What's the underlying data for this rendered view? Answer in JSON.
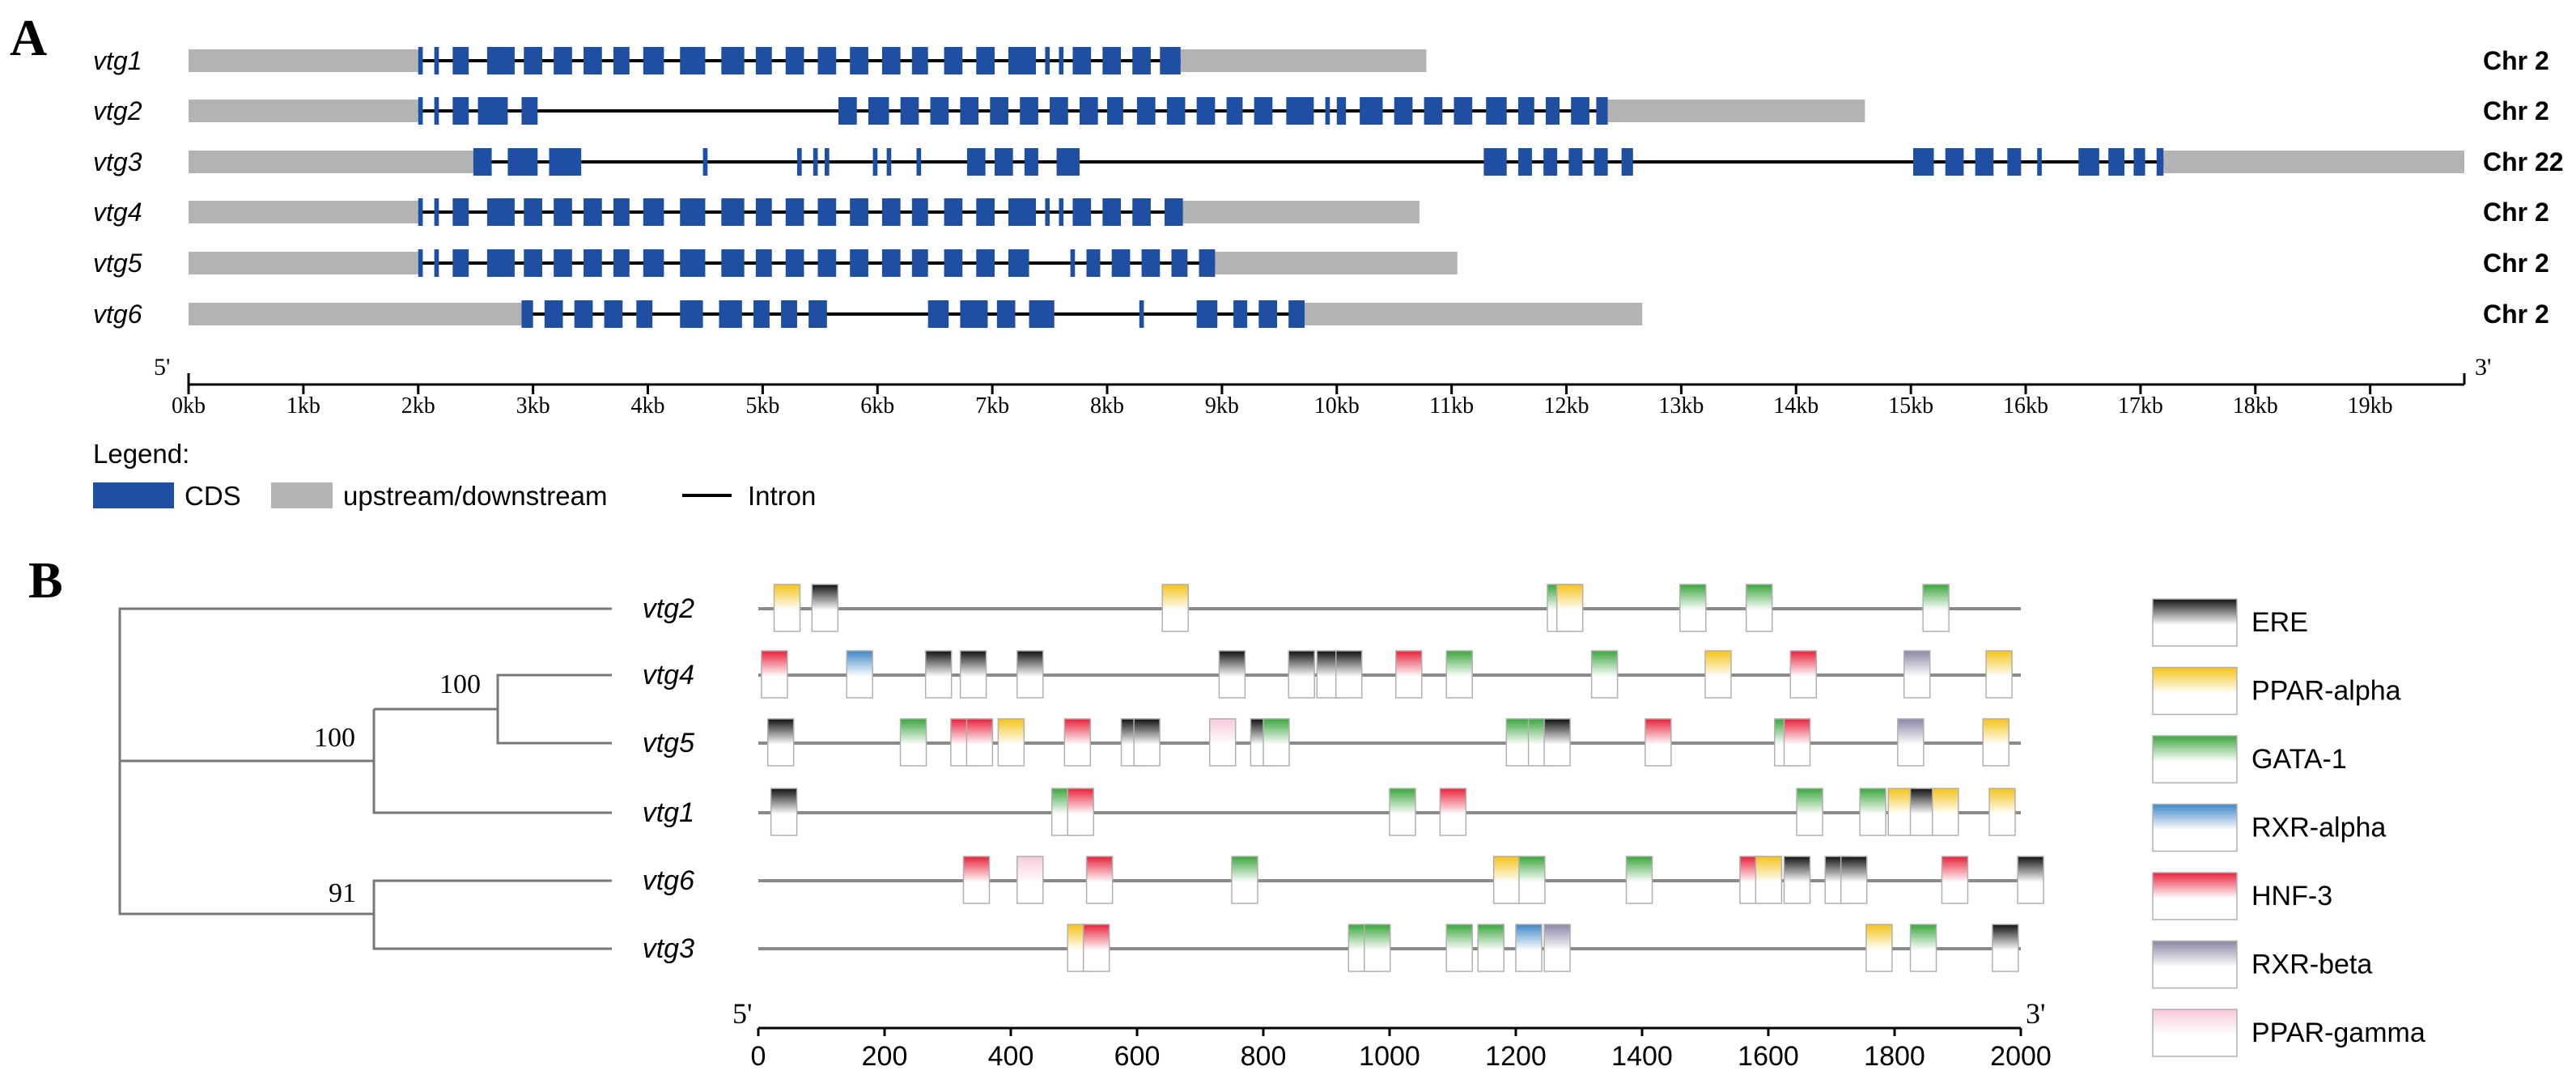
{
  "colors": {
    "cds": "#1f4fa3",
    "utr": "#b3b3b3",
    "intron": "#000000",
    "axis": "#000000",
    "tree": "#777777",
    "motif_line": "#8a8a8a"
  },
  "panelA": {
    "label": "A",
    "genes": [
      {
        "name": "vtg1",
        "chr": "Chr 2",
        "start": 0,
        "end": 10.78,
        "cds": [
          [
            2.0,
            2.04
          ],
          [
            2.14,
            2.18
          ],
          [
            2.3,
            2.44
          ],
          [
            2.6,
            2.84
          ],
          [
            2.92,
            3.08
          ],
          [
            3.18,
            3.34
          ],
          [
            3.44,
            3.6
          ],
          [
            3.7,
            3.84
          ],
          [
            3.96,
            4.14
          ],
          [
            4.28,
            4.5
          ],
          [
            4.64,
            4.84
          ],
          [
            4.94,
            5.08
          ],
          [
            5.2,
            5.36
          ],
          [
            5.48,
            5.64
          ],
          [
            5.76,
            5.92
          ],
          [
            6.04,
            6.2
          ],
          [
            6.3,
            6.44
          ],
          [
            6.58,
            6.74
          ],
          [
            6.86,
            7.02
          ],
          [
            7.14,
            7.38
          ],
          [
            7.46,
            7.5
          ],
          [
            7.58,
            7.62
          ],
          [
            7.7,
            7.86
          ],
          [
            7.96,
            8.12
          ],
          [
            8.22,
            8.38
          ],
          [
            8.46,
            8.64
          ]
        ]
      },
      {
        "name": "vtg2",
        "chr": "Chr 2",
        "start": 0,
        "end": 14.6,
        "cds": [
          [
            2.0,
            2.04
          ],
          [
            2.14,
            2.18
          ],
          [
            2.3,
            2.44
          ],
          [
            2.52,
            2.78
          ],
          [
            2.9,
            3.04
          ],
          [
            5.66,
            5.82
          ],
          [
            5.92,
            6.1
          ],
          [
            6.2,
            6.36
          ],
          [
            6.46,
            6.62
          ],
          [
            6.72,
            6.88
          ],
          [
            6.98,
            7.14
          ],
          [
            7.24,
            7.4
          ],
          [
            7.5,
            7.66
          ],
          [
            7.76,
            7.92
          ],
          [
            8.0,
            8.14
          ],
          [
            8.26,
            8.42
          ],
          [
            8.52,
            8.68
          ],
          [
            8.78,
            8.94
          ],
          [
            9.04,
            9.18
          ],
          [
            9.28,
            9.44
          ],
          [
            9.56,
            9.8
          ],
          [
            9.9,
            9.94
          ],
          [
            10.0,
            10.08
          ],
          [
            10.2,
            10.4
          ],
          [
            10.5,
            10.66
          ],
          [
            10.76,
            10.92
          ],
          [
            11.02,
            11.18
          ],
          [
            11.3,
            11.48
          ],
          [
            11.58,
            11.72
          ],
          [
            11.82,
            11.94
          ],
          [
            12.04,
            12.2
          ],
          [
            12.26,
            12.36
          ]
        ]
      },
      {
        "name": "vtg3",
        "chr": "Chr 22",
        "start": 0,
        "end": 19.82,
        "cds": [
          [
            2.48,
            2.64
          ],
          [
            2.78,
            3.04
          ],
          [
            3.14,
            3.42
          ],
          [
            4.48,
            4.52
          ],
          [
            5.3,
            5.34
          ],
          [
            5.44,
            5.48
          ],
          [
            5.54,
            5.58
          ],
          [
            5.96,
            6.0
          ],
          [
            6.08,
            6.12
          ],
          [
            6.34,
            6.38
          ],
          [
            6.78,
            6.94
          ],
          [
            7.02,
            7.18
          ],
          [
            7.28,
            7.4
          ],
          [
            7.56,
            7.76
          ],
          [
            11.28,
            11.48
          ],
          [
            11.58,
            11.7
          ],
          [
            11.8,
            11.92
          ],
          [
            12.02,
            12.14
          ],
          [
            12.24,
            12.36
          ],
          [
            12.48,
            12.58
          ],
          [
            15.02,
            15.2
          ],
          [
            15.3,
            15.46
          ],
          [
            15.56,
            15.72
          ],
          [
            15.84,
            15.96
          ],
          [
            16.1,
            16.14
          ],
          [
            16.46,
            16.64
          ],
          [
            16.72,
            16.86
          ],
          [
            16.94,
            17.04
          ],
          [
            17.14,
            17.2
          ]
        ]
      },
      {
        "name": "vtg4",
        "chr": "Chr 2",
        "start": 0,
        "end": 10.72,
        "cds": [
          [
            2.0,
            2.04
          ],
          [
            2.14,
            2.18
          ],
          [
            2.3,
            2.44
          ],
          [
            2.6,
            2.84
          ],
          [
            2.92,
            3.08
          ],
          [
            3.18,
            3.34
          ],
          [
            3.44,
            3.6
          ],
          [
            3.7,
            3.84
          ],
          [
            3.96,
            4.14
          ],
          [
            4.28,
            4.5
          ],
          [
            4.64,
            4.84
          ],
          [
            4.94,
            5.08
          ],
          [
            5.2,
            5.36
          ],
          [
            5.48,
            5.64
          ],
          [
            5.76,
            5.92
          ],
          [
            6.04,
            6.2
          ],
          [
            6.3,
            6.44
          ],
          [
            6.58,
            6.74
          ],
          [
            6.86,
            7.02
          ],
          [
            7.14,
            7.38
          ],
          [
            7.46,
            7.5
          ],
          [
            7.58,
            7.62
          ],
          [
            7.7,
            7.86
          ],
          [
            7.96,
            8.12
          ],
          [
            8.22,
            8.38
          ],
          [
            8.5,
            8.66
          ]
        ]
      },
      {
        "name": "vtg5",
        "chr": "Chr 2",
        "start": 0,
        "end": 11.05,
        "cds": [
          [
            2.0,
            2.04
          ],
          [
            2.14,
            2.18
          ],
          [
            2.3,
            2.44
          ],
          [
            2.6,
            2.84
          ],
          [
            2.92,
            3.08
          ],
          [
            3.18,
            3.34
          ],
          [
            3.44,
            3.6
          ],
          [
            3.7,
            3.84
          ],
          [
            3.96,
            4.14
          ],
          [
            4.28,
            4.5
          ],
          [
            4.64,
            4.84
          ],
          [
            4.94,
            5.08
          ],
          [
            5.2,
            5.36
          ],
          [
            5.48,
            5.64
          ],
          [
            5.76,
            5.92
          ],
          [
            6.04,
            6.2
          ],
          [
            6.3,
            6.44
          ],
          [
            6.58,
            6.74
          ],
          [
            6.86,
            7.02
          ],
          [
            7.14,
            7.32
          ],
          [
            7.68,
            7.72
          ],
          [
            7.82,
            7.94
          ],
          [
            8.04,
            8.2
          ],
          [
            8.3,
            8.46
          ],
          [
            8.56,
            8.7
          ],
          [
            8.8,
            8.94
          ]
        ]
      },
      {
        "name": "vtg6",
        "chr": "Chr 2",
        "start": 0,
        "end": 12.66,
        "cds": [
          [
            2.9,
            3.0
          ],
          [
            3.1,
            3.26
          ],
          [
            3.36,
            3.52
          ],
          [
            3.62,
            3.78
          ],
          [
            3.9,
            4.04
          ],
          [
            4.28,
            4.48
          ],
          [
            4.62,
            4.82
          ],
          [
            4.92,
            5.06
          ],
          [
            5.16,
            5.3
          ],
          [
            5.4,
            5.56
          ],
          [
            6.44,
            6.62
          ],
          [
            6.72,
            6.96
          ],
          [
            7.04,
            7.2
          ],
          [
            7.32,
            7.54
          ],
          [
            8.28,
            8.32
          ],
          [
            8.78,
            8.96
          ],
          [
            9.1,
            9.22
          ],
          [
            9.32,
            9.48
          ],
          [
            9.58,
            9.72
          ]
        ]
      }
    ],
    "axis": {
      "max": 19.82,
      "left_end_label": "5'",
      "right_end_label": "3'",
      "ticks": [
        "0kb",
        "1kb",
        "2kb",
        "3kb",
        "4kb",
        "5kb",
        "6kb",
        "7kb",
        "8kb",
        "9kb",
        "10kb",
        "11kb",
        "12kb",
        "13kb",
        "14kb",
        "15kb",
        "16kb",
        "17kb",
        "18kb",
        "19kb"
      ]
    },
    "legend": {
      "title": "Legend:",
      "items": [
        {
          "key": "cds",
          "label": "CDS"
        },
        {
          "key": "utr",
          "label": "upstream/downstream"
        },
        {
          "key": "intron",
          "label": "Intron"
        }
      ]
    }
  },
  "panelB": {
    "label": "B",
    "tree": {
      "bootstraps": [
        "100",
        "100",
        "91"
      ]
    },
    "genes": [
      "vtg2",
      "vtg4",
      "vtg5",
      "vtg1",
      "vtg6",
      "vtg3"
    ],
    "axis": {
      "max": 2000,
      "left_end_label": "5'",
      "right_end_label": "3'",
      "ticks": [
        "0",
        "200",
        "400",
        "600",
        "800",
        "1000",
        "1200",
        "1400",
        "1600",
        "1800",
        "2000"
      ]
    },
    "motif_types": [
      {
        "key": "ERE",
        "label": "ERE",
        "color": "#111111"
      },
      {
        "key": "PPAR-alpha",
        "label": "PPAR-alpha",
        "color": "#f5c318"
      },
      {
        "key": "GATA-1",
        "label": "GATA-1",
        "color": "#3aa63c"
      },
      {
        "key": "RXR-alpha",
        "label": "RXR-alpha",
        "color": "#3f87c8"
      },
      {
        "key": "HNF-3",
        "label": "HNF-3",
        "color": "#e8213a"
      },
      {
        "key": "RXR-beta",
        "label": "RXR-beta",
        "color": "#8a86a6"
      },
      {
        "key": "PPAR-gamma",
        "label": "PPAR-gamma",
        "color": "#f7c9dc"
      }
    ],
    "motifs": {
      "vtg2": [
        [
          "PPAR-alpha",
          25
        ],
        [
          "ERE",
          85
        ],
        [
          "PPAR-alpha",
          640
        ],
        [
          "GATA-1",
          1250
        ],
        [
          "PPAR-alpha",
          1265
        ],
        [
          "GATA-1",
          1460
        ],
        [
          "GATA-1",
          1565
        ],
        [
          "GATA-1",
          1845
        ]
      ],
      "vtg4": [
        [
          "HNF-3",
          5
        ],
        [
          "RXR-alpha",
          140
        ],
        [
          "ERE",
          265
        ],
        [
          "ERE",
          320
        ],
        [
          "ERE",
          410
        ],
        [
          "ERE",
          730
        ],
        [
          "ERE",
          840
        ],
        [
          "ERE",
          885
        ],
        [
          "ERE",
          915
        ],
        [
          "HNF-3",
          1010
        ],
        [
          "GATA-1",
          1090
        ],
        [
          "GATA-1",
          1320
        ],
        [
          "PPAR-alpha",
          1500
        ],
        [
          "HNF-3",
          1635
        ],
        [
          "RXR-beta",
          1815
        ],
        [
          "PPAR-alpha",
          1945
        ]
      ],
      "vtg5": [
        [
          "ERE",
          15
        ],
        [
          "GATA-1",
          225
        ],
        [
          "HNF-3",
          305
        ],
        [
          "HNF-3",
          330
        ],
        [
          "PPAR-alpha",
          380
        ],
        [
          "HNF-3",
          485
        ],
        [
          "ERE",
          575
        ],
        [
          "ERE",
          595
        ],
        [
          "PPAR-gamma",
          715
        ],
        [
          "ERE",
          780
        ],
        [
          "GATA-1",
          800
        ],
        [
          "GATA-1",
          1185
        ],
        [
          "GATA-1",
          1220
        ],
        [
          "ERE",
          1245
        ],
        [
          "HNF-3",
          1405
        ],
        [
          "GATA-1",
          1610
        ],
        [
          "HNF-3",
          1625
        ],
        [
          "RXR-beta",
          1805
        ],
        [
          "PPAR-alpha",
          1940
        ]
      ],
      "vtg1": [
        [
          "ERE",
          20
        ],
        [
          "GATA-1",
          465
        ],
        [
          "HNF-3",
          490
        ],
        [
          "GATA-1",
          1000
        ],
        [
          "HNF-3",
          1080
        ],
        [
          "GATA-1",
          1645
        ],
        [
          "GATA-1",
          1745
        ],
        [
          "PPAR-alpha",
          1790
        ],
        [
          "ERE",
          1825
        ],
        [
          "PPAR-alpha",
          1860
        ],
        [
          "PPAR-alpha",
          1950
        ]
      ],
      "vtg6": [
        [
          "HNF-3",
          325
        ],
        [
          "PPAR-gamma",
          410
        ],
        [
          "HNF-3",
          520
        ],
        [
          "GATA-1",
          750
        ],
        [
          "PPAR-alpha",
          1165
        ],
        [
          "GATA-1",
          1205
        ],
        [
          "GATA-1",
          1375
        ],
        [
          "HNF-3",
          1555
        ],
        [
          "PPAR-alpha",
          1580
        ],
        [
          "ERE",
          1625
        ],
        [
          "ERE",
          1690
        ],
        [
          "ERE",
          1715
        ],
        [
          "HNF-3",
          1875
        ],
        [
          "ERE",
          1995
        ]
      ],
      "vtg3": [
        [
          "PPAR-alpha",
          490
        ],
        [
          "HNF-3",
          515
        ],
        [
          "GATA-1",
          935
        ],
        [
          "GATA-1",
          960
        ],
        [
          "GATA-1",
          1090
        ],
        [
          "GATA-1",
          1140
        ],
        [
          "RXR-alpha",
          1200
        ],
        [
          "RXR-beta",
          1245
        ],
        [
          "PPAR-alpha",
          1755
        ],
        [
          "GATA-1",
          1825
        ],
        [
          "ERE",
          1955
        ]
      ]
    }
  }
}
